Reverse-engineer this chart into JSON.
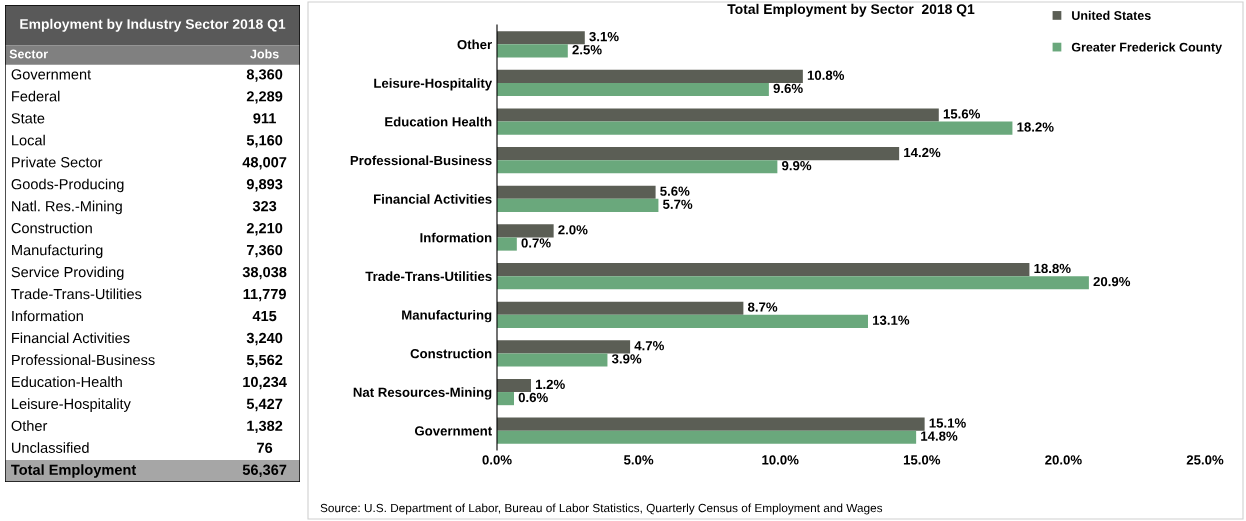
{
  "chart_data": [
    {
      "type": "other",
      "title": "Employment by Industry Sector 2018 Q1",
      "annotations": [
        "Sector",
        "Jobs"
      ],
      "categories": [
        "Government",
        "Federal",
        "State",
        "Local",
        "Private Sector",
        "Goods-Producing",
        "Natl. Res.-Mining",
        "Construction",
        "Manufacturing",
        "Service Providing",
        "Trade-Trans-Utilities",
        "Information",
        "Financial Activities",
        "Professional-Business",
        "Education-Health",
        "Leisure-Hospitality",
        "Other",
        "Unclassified",
        "Total Employment"
      ],
      "value_labels": [
        "8,360",
        "2,289",
        "911",
        "5,160",
        "48,007",
        "9,893",
        "323",
        "2,210",
        "7,360",
        "38,038",
        "11,779",
        "415",
        "3,240",
        "5,562",
        "10,234",
        "5,427",
        "1,382",
        "76",
        "56,367"
      ]
    },
    {
      "type": "bar",
      "orientation": "horizontal",
      "title": "Total Employment by Sector  2018 Q1",
      "categories": [
        "Other",
        "Leisure-Hospitality",
        "Education Health",
        "Professional-Business",
        "Financial Activities",
        "Information",
        "Trade-Trans-Utilities",
        "Manufacturing",
        "Construction",
        "Nat Resources-Mining",
        "Government"
      ],
      "series": [
        {
          "name": "United States",
          "color": "#5b5e55",
          "values": [
            3.1,
            10.8,
            15.6,
            14.2,
            5.6,
            2.0,
            18.8,
            8.7,
            4.7,
            1.2,
            15.1
          ],
          "value_labels": [
            "3.1%",
            "10.8%",
            "15.6%",
            "14.2%",
            "5.6%",
            "2.0%",
            "18.8%",
            "8.7%",
            "4.7%",
            "1.2%",
            "15.1%"
          ]
        },
        {
          "name": "Greater Frederick County",
          "color": "#6aa87c",
          "values": [
            2.5,
            9.6,
            18.2,
            9.9,
            5.7,
            0.7,
            20.9,
            13.1,
            3.9,
            0.6,
            14.8
          ],
          "value_labels": [
            "2.5%",
            "9.6%",
            "18.2%",
            "9.9%",
            "5.7%",
            "0.7%",
            "20.9%",
            "13.1%",
            "3.9%",
            "0.6%",
            "14.8%"
          ]
        }
      ],
      "xlim": [
        0,
        25
      ],
      "xticks": [
        {
          "value": 0,
          "label": "0.0%"
        },
        {
          "value": 5,
          "label": "5.0%"
        },
        {
          "value": 10,
          "label": "10.0%"
        },
        {
          "value": 15,
          "label": "15.0%"
        },
        {
          "value": 20,
          "label": "20.0%"
        },
        {
          "value": 25,
          "label": "25.0%"
        }
      ],
      "grid": false,
      "legend": "top right",
      "annotations": [
        "Source: U.S. Department of Labor, Bureau of Labor Statistics, Quarterly Census of Employment and Wages"
      ]
    }
  ]
}
